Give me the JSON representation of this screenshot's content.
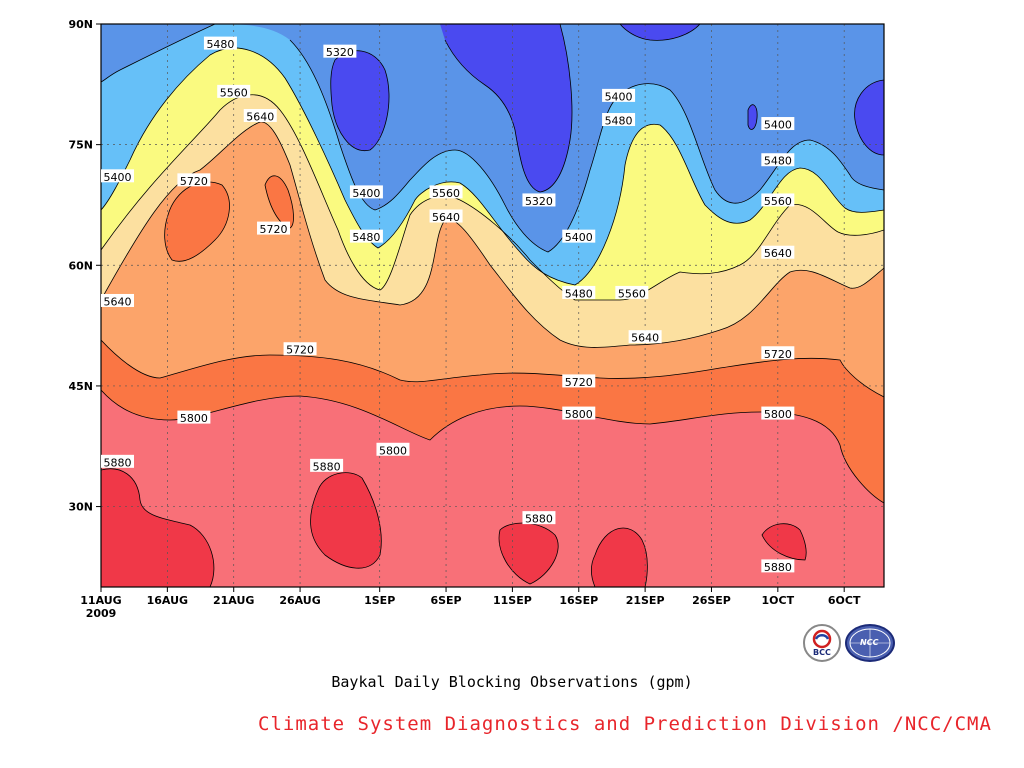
{
  "chart_data": {
    "type": "heatmap",
    "title": "Baykal Daily Blocking Observations (gpm)",
    "x_ticks": [
      "11AUG",
      "16AUG",
      "21AUG",
      "26AUG",
      "1SEP",
      "6SEP",
      "11SEP",
      "16SEP",
      "21SEP",
      "26SEP",
      "1OCT",
      "6OCT"
    ],
    "x_tick_year": "2009",
    "x_range": [
      "2009-08-11",
      "2009-10-09"
    ],
    "y_ticks": [
      "90N",
      "75N",
      "60N",
      "45N",
      "30N"
    ],
    "y_tick_values": [
      90,
      75,
      60,
      45,
      30
    ],
    "ylim": [
      20,
      90
    ],
    "levels": [
      5320,
      5400,
      5480,
      5560,
      5640,
      5720,
      5800,
      5880
    ],
    "level_colors": [
      "#4a4af0",
      "#5a94e8",
      "#66c0f8",
      "#fafa80",
      "#fce0a0",
      "#fca46a",
      "#fa7644",
      "#f87078",
      "#f03848"
    ],
    "contour_labels": [
      {
        "value": "5480",
        "date": "2009-08-20",
        "lat": 87.5
      },
      {
        "value": "5320",
        "date": "2009-08-29",
        "lat": 86.5
      },
      {
        "value": "5560",
        "date": "2009-08-21",
        "lat": 81.5
      },
      {
        "value": "5640",
        "date": "2009-08-23",
        "lat": 78.5
      },
      {
        "value": "5400",
        "date": "2009-09-19",
        "lat": 81.0
      },
      {
        "value": "5480",
        "date": "2009-09-19",
        "lat": 78.0
      },
      {
        "value": "5400",
        "date": "2009-10-01",
        "lat": 77.5
      },
      {
        "value": "5400",
        "date": "2009-08-11",
        "lat": 71.0
      },
      {
        "value": "5720",
        "date": "2009-08-18",
        "lat": 70.5
      },
      {
        "value": "5480",
        "date": "2009-10-01",
        "lat": 73.0
      },
      {
        "value": "5400",
        "date": "2009-08-31",
        "lat": 69.0
      },
      {
        "value": "5560",
        "date": "2009-09-06",
        "lat": 69.0
      },
      {
        "value": "5320",
        "date": "2009-09-13",
        "lat": 68.0
      },
      {
        "value": "5560",
        "date": "2009-10-01",
        "lat": 68.0
      },
      {
        "value": "5720",
        "date": "2009-08-24",
        "lat": 64.5
      },
      {
        "value": "5640",
        "date": "2009-09-06",
        "lat": 66.0
      },
      {
        "value": "5480",
        "date": "2009-08-31",
        "lat": 63.5
      },
      {
        "value": "5400",
        "date": "2009-09-16",
        "lat": 63.5
      },
      {
        "value": "5640",
        "date": "2009-10-01",
        "lat": 61.5
      },
      {
        "value": "5640",
        "date": "2009-08-12",
        "lat": 55.5
      },
      {
        "value": "5480",
        "date": "2009-09-16",
        "lat": 56.5
      },
      {
        "value": "5560",
        "date": "2009-09-20",
        "lat": 56.5
      },
      {
        "value": "5640",
        "date": "2009-09-21",
        "lat": 51.0
      },
      {
        "value": "5720",
        "date": "2009-08-26",
        "lat": 49.5
      },
      {
        "value": "5720",
        "date": "2009-10-01",
        "lat": 49.0
      },
      {
        "value": "5720",
        "date": "2009-09-16",
        "lat": 45.5
      },
      {
        "value": "5800",
        "date": "2009-08-18",
        "lat": 41.0
      },
      {
        "value": "5800",
        "date": "2009-09-16",
        "lat": 41.5
      },
      {
        "value": "5800",
        "date": "2009-10-01",
        "lat": 41.5
      },
      {
        "value": "5800",
        "date": "2009-09-02",
        "lat": 37.0
      },
      {
        "value": "5880",
        "date": "2009-08-11",
        "lat": 35.5
      },
      {
        "value": "5880",
        "date": "2009-08-28",
        "lat": 35.0
      },
      {
        "value": "5880",
        "date": "2009-09-13",
        "lat": 28.5
      },
      {
        "value": "5880",
        "date": "2009-10-01",
        "lat": 22.5
      }
    ]
  },
  "caption": "Baykal Daily Blocking Observations (gpm)",
  "credit": "Climate System Diagnostics and Prediction Division /NCC/CMA",
  "logos": {
    "left": "BCC",
    "right": "NCC"
  }
}
